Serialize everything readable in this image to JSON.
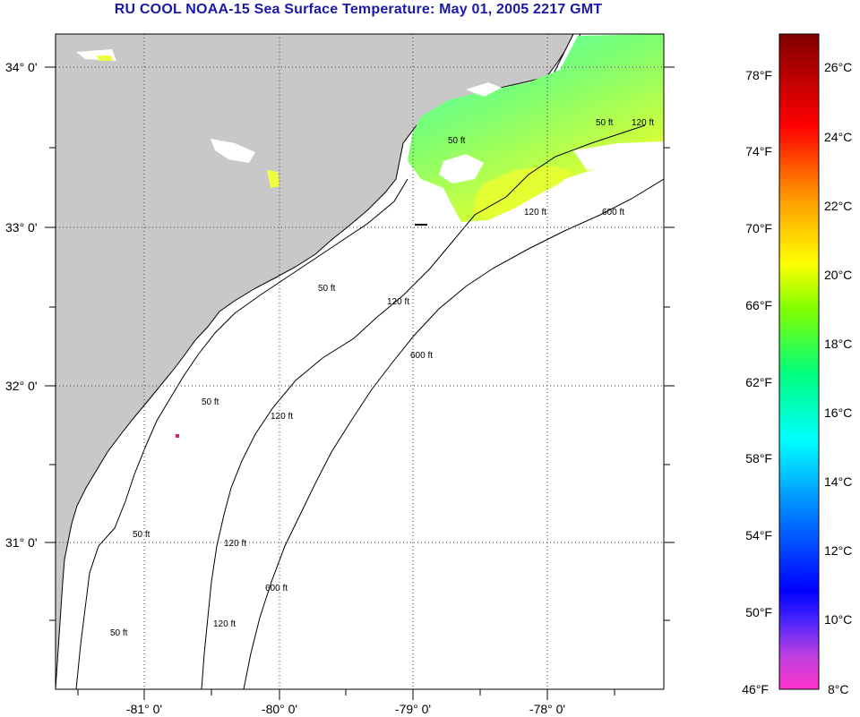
{
  "title": "RU COOL  NOAA-15  Sea Surface Temperature:  May 01, 2005 2217 GMT",
  "map": {
    "lat_labels": [
      "34° 0'",
      "33° 0'",
      "32° 0'",
      "31° 0'"
    ],
    "lon_labels": [
      "-81° 0'",
      "-80° 0'",
      "-79° 0'",
      "-78° 0'"
    ],
    "isobaths": [
      "50 ft",
      "120 ft",
      "600 ft"
    ],
    "colors": {
      "land": "#c8c8c8",
      "ocean": "#ffffff",
      "cloud": "#ffffff",
      "grid": "#404040"
    }
  },
  "colorbar": {
    "fahrenheit_labels": [
      "78°F",
      "74°F",
      "70°F",
      "66°F",
      "62°F",
      "58°F",
      "54°F",
      "50°F",
      "46°F"
    ],
    "celsius_labels": [
      "26°C",
      "24°C",
      "22°C",
      "20°C",
      "18°C",
      "16°C",
      "14°C",
      "12°C",
      "10°C",
      "8°C"
    ],
    "range_c": [
      8,
      27
    ],
    "stops": [
      "#ff33cc",
      "#8a2be2",
      "#0000ff",
      "#0080ff",
      "#00ffff",
      "#00ff80",
      "#80ff00",
      "#ffff00",
      "#ff9900",
      "#ff0000",
      "#800000"
    ]
  }
}
